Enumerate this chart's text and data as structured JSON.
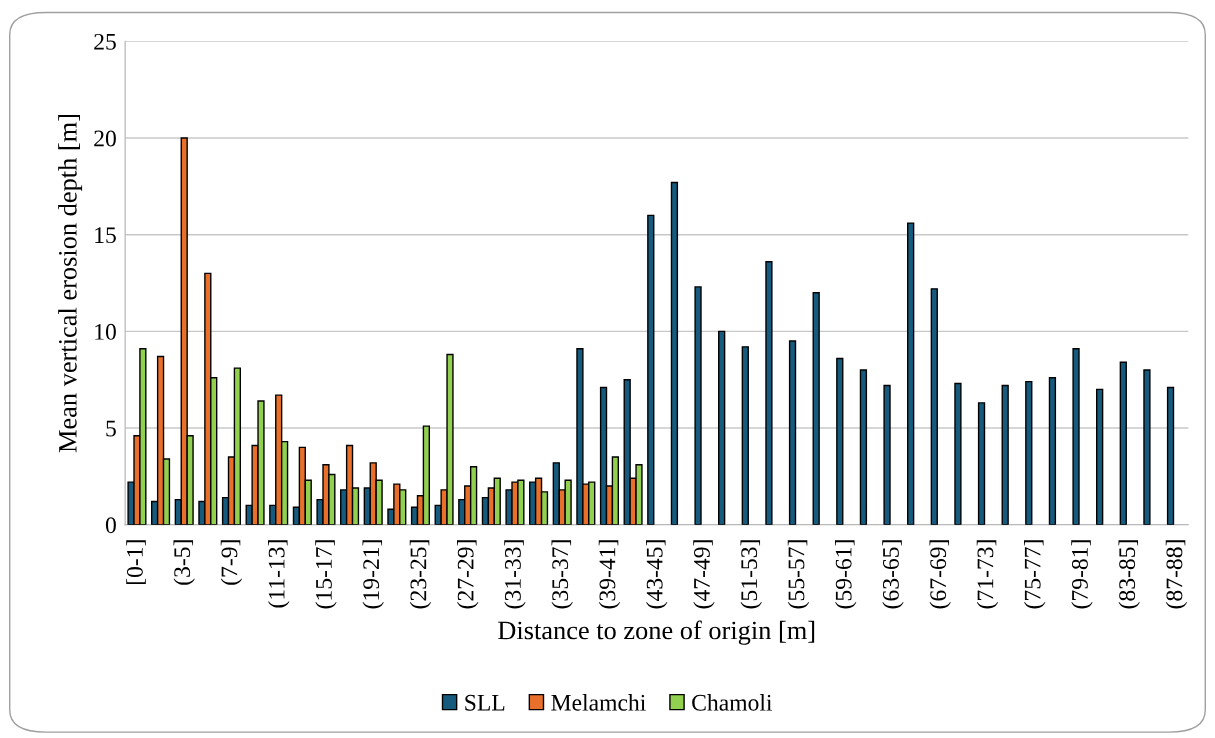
{
  "chart_data": {
    "type": "bar",
    "xlabel": "Distance to zone of origin [m]",
    "ylabel": "Mean vertical erosion depth [m]",
    "categories": [
      "[0-1]",
      null,
      "(3-5]",
      null,
      "(7-9]",
      null,
      "(11-13]",
      null,
      "(15-17]",
      null,
      "(19-21]",
      null,
      "(23-25]",
      null,
      "(27-29]",
      null,
      "(31-33]",
      null,
      "(35-37]",
      null,
      "(39-41]",
      null,
      "(43-45]",
      null,
      "(47-49]",
      null,
      "(51-53]",
      null,
      "(55-57]",
      null,
      "(59-61]",
      null,
      "(63-65]",
      null,
      "(67-69]",
      null,
      "(71-73]",
      null,
      "(75-77]",
      null,
      "(79-81]",
      null,
      "(83-85]",
      null,
      "(87-88]"
    ],
    "series": [
      {
        "name": "SLL",
        "color": "#165a7e",
        "values": [
          2.2,
          1.2,
          1.3,
          1.2,
          1.4,
          1.0,
          1.0,
          0.9,
          1.3,
          1.8,
          1.9,
          0.8,
          0.9,
          1.0,
          1.3,
          1.4,
          1.8,
          2.2,
          3.2,
          9.1,
          7.1,
          7.5,
          16.0,
          17.7,
          12.3,
          10.0,
          9.2,
          13.6,
          9.5,
          12.0,
          8.6,
          8.0,
          7.2,
          15.6,
          12.2,
          7.3,
          6.3,
          7.2,
          7.4,
          7.6,
          9.1,
          7.0,
          8.4,
          8.0,
          7.1
        ]
      },
      {
        "name": "Melamchi",
        "color": "#e8702a",
        "values": [
          4.6,
          8.7,
          20.0,
          13.0,
          3.5,
          4.1,
          6.7,
          4.0,
          3.1,
          4.1,
          3.2,
          2.1,
          1.5,
          1.8,
          2.0,
          1.9,
          2.2,
          2.4,
          1.8,
          2.1,
          2.0,
          2.4,
          null,
          null,
          null,
          null,
          null,
          null,
          null,
          null,
          null,
          null,
          null,
          null,
          null,
          null,
          null,
          null,
          null,
          null,
          null,
          null,
          null,
          null,
          null
        ]
      },
      {
        "name": "Chamoli",
        "color": "#92d050",
        "values": [
          9.1,
          3.4,
          4.6,
          7.6,
          8.1,
          6.4,
          4.3,
          2.3,
          2.6,
          1.9,
          2.3,
          1.8,
          5.1,
          8.8,
          3.0,
          2.4,
          2.3,
          1.7,
          2.3,
          2.2,
          3.5,
          3.1,
          null,
          null,
          null,
          null,
          null,
          null,
          null,
          null,
          null,
          null,
          null,
          null,
          null,
          null,
          null,
          null,
          null,
          null,
          null,
          null,
          null,
          null,
          null
        ]
      }
    ],
    "ylim": [
      0,
      25
    ],
    "yticks": [
      0,
      5,
      10,
      15,
      20,
      25
    ],
    "grid": "y",
    "legend": "bottom"
  }
}
